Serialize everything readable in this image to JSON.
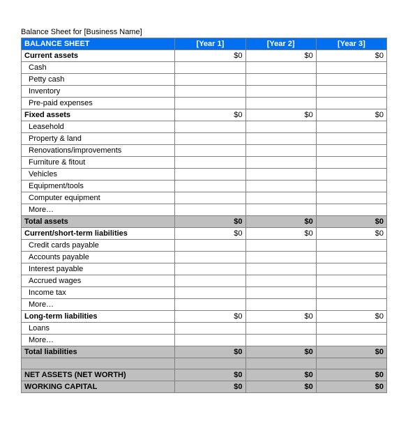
{
  "title": "Balance Sheet for [Business Name]",
  "header": {
    "label": "BALANCE SHEET",
    "year1": "[Year 1]",
    "year2": "[Year 2]",
    "year3": "[Year 3]"
  },
  "rows": [
    {
      "type": "section",
      "label": "Current assets",
      "y1": "$0",
      "y2": "$0",
      "y3": "$0"
    },
    {
      "type": "item",
      "label": "Cash",
      "y1": "",
      "y2": "",
      "y3": ""
    },
    {
      "type": "item",
      "label": "Petty cash",
      "y1": "",
      "y2": "",
      "y3": ""
    },
    {
      "type": "item",
      "label": "Inventory",
      "y1": "",
      "y2": "",
      "y3": ""
    },
    {
      "type": "item",
      "label": "Pre-paid expenses",
      "y1": "",
      "y2": "",
      "y3": ""
    },
    {
      "type": "section",
      "label": "Fixed assets",
      "y1": "$0",
      "y2": "$0",
      "y3": "$0"
    },
    {
      "type": "item",
      "label": "Leasehold",
      "y1": "",
      "y2": "",
      "y3": ""
    },
    {
      "type": "item",
      "label": "Property & land",
      "y1": "",
      "y2": "",
      "y3": ""
    },
    {
      "type": "item",
      "label": "Renovations/improvements",
      "y1": "",
      "y2": "",
      "y3": ""
    },
    {
      "type": "item",
      "label": "Furniture & fitout",
      "y1": "",
      "y2": "",
      "y3": ""
    },
    {
      "type": "item",
      "label": "Vehicles",
      "y1": "",
      "y2": "",
      "y3": ""
    },
    {
      "type": "item",
      "label": "Equipment/tools",
      "y1": "",
      "y2": "",
      "y3": ""
    },
    {
      "type": "item",
      "label": "Computer equipment",
      "y1": "",
      "y2": "",
      "y3": ""
    },
    {
      "type": "item",
      "label": "More…",
      "y1": "",
      "y2": "",
      "y3": ""
    },
    {
      "type": "total",
      "label": "Total assets",
      "y1": "$0",
      "y2": "$0",
      "y3": "$0"
    },
    {
      "type": "section",
      "label": "Current/short-term liabilities",
      "y1": "$0",
      "y2": "$0",
      "y3": "$0"
    },
    {
      "type": "item",
      "label": "Credit cards payable",
      "y1": "",
      "y2": "",
      "y3": ""
    },
    {
      "type": "item",
      "label": "Accounts payable",
      "y1": "",
      "y2": "",
      "y3": ""
    },
    {
      "type": "item",
      "label": "Interest payable",
      "y1": "",
      "y2": "",
      "y3": ""
    },
    {
      "type": "item",
      "label": "Accrued wages",
      "y1": "",
      "y2": "",
      "y3": ""
    },
    {
      "type": "item",
      "label": "Income tax",
      "y1": "",
      "y2": "",
      "y3": ""
    },
    {
      "type": "item",
      "label": "More…",
      "y1": "",
      "y2": "",
      "y3": ""
    },
    {
      "type": "section",
      "label": "Long-term liabilities",
      "y1": "$0",
      "y2": "$0",
      "y3": "$0"
    },
    {
      "type": "item",
      "label": "Loans",
      "y1": "",
      "y2": "",
      "y3": ""
    },
    {
      "type": "item",
      "label": "More…",
      "y1": "",
      "y2": "",
      "y3": ""
    },
    {
      "type": "total",
      "label": "Total liabilities",
      "y1": "$0",
      "y2": "$0",
      "y3": "$0"
    },
    {
      "type": "spacer",
      "label": "",
      "y1": "",
      "y2": "",
      "y3": ""
    },
    {
      "type": "net",
      "label": "NET ASSETS (NET WORTH)",
      "y1": "$0",
      "y2": "$0",
      "y3": "$0"
    },
    {
      "type": "net",
      "label": "WORKING CAPITAL",
      "y1": "$0",
      "y2": "$0",
      "y3": "$0"
    }
  ],
  "colors": {
    "header_bg": "#0070f0",
    "header_text": "#ffffff",
    "total_bg": "#bfbfbf",
    "border": "#808080"
  }
}
